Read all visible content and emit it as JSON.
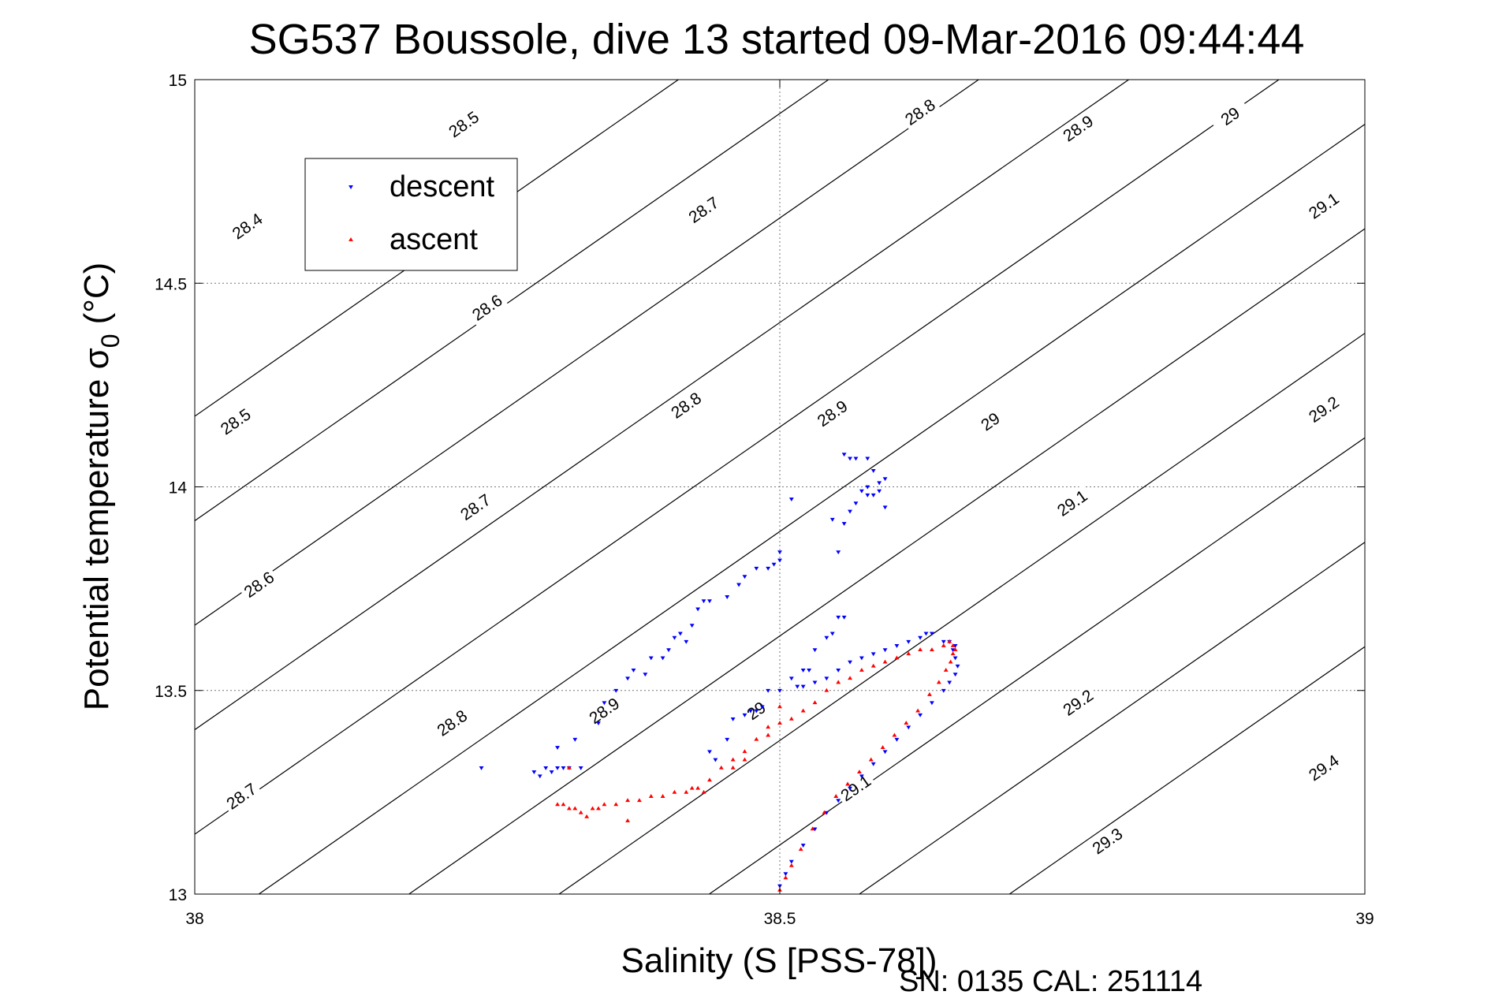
{
  "chart_data": {
    "type": "scatter",
    "title": "SG537 Boussole, dive 13 started 09-Mar-2016 09:44:44",
    "xlabel": "Salinity (S [PSS-78])",
    "ylabel_main": "Potential temperature σ",
    "ylabel_sub": "0",
    "ylabel_unit": "(°C)",
    "xlim": [
      38,
      39
    ],
    "ylim": [
      13,
      15
    ],
    "xticks": [
      38,
      38.5,
      39
    ],
    "xtick_labels": [
      "38",
      "38.5",
      "39"
    ],
    "yticks": [
      13,
      13.5,
      14,
      14.5,
      15
    ],
    "ytick_labels": [
      "13",
      "13.5",
      "14",
      "14.5",
      "15"
    ],
    "grid": true,
    "legend_position": "top-left",
    "footer": "SN: 0135  CAL: 251114",
    "colors": {
      "descent": "#0000ff",
      "ascent": "#ff0000",
      "isopycnal": "#000000"
    },
    "isopycnals": [
      {
        "sigma": 28.4,
        "x0": 37.4133,
        "label": "28.4",
        "label_at": [
          38.045,
          14.64
        ]
      },
      {
        "sigma": 28.5,
        "x0": 37.5416,
        "label": "28.5",
        "label_at": [
          38.23,
          14.89
        ]
      },
      {
        "sigma": 28.5,
        "x0": 37.5416,
        "label": "28.5",
        "label_at": [
          38.035,
          14.16
        ]
      },
      {
        "sigma": 28.6,
        "x0": 37.6699,
        "label": "28.6",
        "label_at": [
          38.25,
          14.44
        ]
      },
      {
        "sigma": 28.6,
        "x0": 37.6699,
        "label": "28.6",
        "label_at": [
          38.055,
          13.76
        ]
      },
      {
        "sigma": 28.7,
        "x0": 37.7982,
        "label": "28.7",
        "label_at": [
          38.435,
          14.68
        ]
      },
      {
        "sigma": 28.7,
        "x0": 37.7982,
        "label": "28.7",
        "label_at": [
          38.24,
          13.95
        ]
      },
      {
        "sigma": 28.7,
        "x0": 37.7982,
        "label": "28.7",
        "label_at": [
          38.04,
          13.24
        ]
      },
      {
        "sigma": 28.8,
        "x0": 37.9265,
        "label": "28.8",
        "label_at": [
          38.62,
          14.92
        ]
      },
      {
        "sigma": 28.8,
        "x0": 37.9265,
        "label": "28.8",
        "label_at": [
          38.42,
          14.2
        ]
      },
      {
        "sigma": 28.8,
        "x0": 37.9265,
        "label": "28.8",
        "label_at": [
          38.22,
          13.42
        ]
      },
      {
        "sigma": 28.9,
        "x0": 38.0548,
        "label": "28.9",
        "label_at": [
          38.755,
          14.88
        ]
      },
      {
        "sigma": 28.9,
        "x0": 38.0548,
        "label": "28.9",
        "label_at": [
          38.545,
          14.18
        ]
      },
      {
        "sigma": 28.9,
        "x0": 38.0548,
        "label": "28.9",
        "label_at": [
          38.35,
          13.45
        ]
      },
      {
        "sigma": 29.0,
        "x0": 38.1831,
        "label": "29",
        "label_at": [
          38.885,
          14.91
        ]
      },
      {
        "sigma": 29.0,
        "x0": 38.1831,
        "label": "29",
        "label_at": [
          38.68,
          14.16
        ]
      },
      {
        "sigma": 29.0,
        "x0": 38.1831,
        "label": "29",
        "label_at": [
          38.48,
          13.45
        ]
      },
      {
        "sigma": 29.1,
        "x0": 38.3114,
        "label": "29.1",
        "label_at": [
          38.965,
          14.69
        ]
      },
      {
        "sigma": 29.1,
        "x0": 38.3114,
        "label": "29.1",
        "label_at": [
          38.75,
          13.96
        ]
      },
      {
        "sigma": 29.1,
        "x0": 38.3114,
        "label": "29.1",
        "label_at": [
          38.565,
          13.26
        ]
      },
      {
        "sigma": 29.2,
        "x0": 38.4397,
        "label": "29.2",
        "label_at": [
          38.965,
          14.19
        ]
      },
      {
        "sigma": 29.2,
        "x0": 38.4397,
        "label": "29.2",
        "label_at": [
          38.755,
          13.47
        ]
      },
      {
        "sigma": 29.3,
        "x0": 38.568,
        "label": "29.3",
        "label_at": [
          38.78,
          13.13
        ]
      },
      {
        "sigma": 29.4,
        "x0": 38.6963,
        "label": "29.4",
        "label_at": [
          38.965,
          13.31
        ]
      }
    ],
    "series": [
      {
        "name": "descent",
        "marker": "triangle-down",
        "points": [
          [
            38.245,
            13.31
          ],
          [
            38.29,
            13.3
          ],
          [
            38.295,
            13.29
          ],
          [
            38.3,
            13.31
          ],
          [
            38.305,
            13.3
          ],
          [
            38.31,
            13.31
          ],
          [
            38.315,
            13.31
          ],
          [
            38.32,
            13.31
          ],
          [
            38.33,
            13.31
          ],
          [
            38.31,
            13.36
          ],
          [
            38.325,
            13.38
          ],
          [
            38.345,
            13.42
          ],
          [
            38.35,
            13.47
          ],
          [
            38.36,
            13.5
          ],
          [
            38.37,
            13.53
          ],
          [
            38.375,
            13.55
          ],
          [
            38.385,
            13.54
          ],
          [
            38.39,
            13.58
          ],
          [
            38.4,
            13.58
          ],
          [
            38.405,
            13.6
          ],
          [
            38.41,
            13.63
          ],
          [
            38.415,
            13.64
          ],
          [
            38.42,
            13.62
          ],
          [
            38.425,
            13.66
          ],
          [
            38.43,
            13.7
          ],
          [
            38.435,
            13.72
          ],
          [
            38.44,
            13.72
          ],
          [
            38.455,
            13.73
          ],
          [
            38.465,
            13.76
          ],
          [
            38.47,
            13.78
          ],
          [
            38.48,
            13.8
          ],
          [
            38.49,
            13.8
          ],
          [
            38.495,
            13.81
          ],
          [
            38.5,
            13.82
          ],
          [
            38.5,
            13.84
          ],
          [
            38.51,
            13.97
          ],
          [
            38.44,
            13.35
          ],
          [
            38.445,
            13.33
          ],
          [
            38.455,
            13.38
          ],
          [
            38.46,
            13.43
          ],
          [
            38.47,
            13.44
          ],
          [
            38.475,
            13.45
          ],
          [
            38.48,
            13.45
          ],
          [
            38.485,
            13.46
          ],
          [
            38.49,
            13.5
          ],
          [
            38.5,
            13.5
          ],
          [
            38.51,
            13.53
          ],
          [
            38.52,
            13.55
          ],
          [
            38.525,
            13.55
          ],
          [
            38.53,
            13.6
          ],
          [
            38.54,
            13.63
          ],
          [
            38.545,
            13.64
          ],
          [
            38.55,
            13.68
          ],
          [
            38.515,
            13.51
          ],
          [
            38.52,
            13.51
          ],
          [
            38.53,
            13.52
          ],
          [
            38.54,
            13.53
          ],
          [
            38.55,
            13.55
          ],
          [
            38.56,
            13.57
          ],
          [
            38.57,
            13.58
          ],
          [
            38.58,
            13.59
          ],
          [
            38.59,
            13.6
          ],
          [
            38.6,
            13.61
          ],
          [
            38.61,
            13.62
          ],
          [
            38.62,
            13.63
          ],
          [
            38.625,
            13.64
          ],
          [
            38.63,
            13.64
          ],
          [
            38.64,
            13.62
          ],
          [
            38.645,
            13.62
          ],
          [
            38.65,
            13.61
          ],
          [
            38.648,
            13.6
          ],
          [
            38.65,
            13.58
          ],
          [
            38.652,
            13.56
          ],
          [
            38.65,
            13.54
          ],
          [
            38.645,
            13.52
          ],
          [
            38.64,
            13.5
          ],
          [
            38.63,
            13.47
          ],
          [
            38.62,
            13.44
          ],
          [
            38.61,
            13.41
          ],
          [
            38.6,
            13.38
          ],
          [
            38.59,
            13.35
          ],
          [
            38.58,
            13.32
          ],
          [
            38.57,
            13.29
          ],
          [
            38.56,
            13.26
          ],
          [
            38.55,
            13.23
          ],
          [
            38.54,
            13.2
          ],
          [
            38.53,
            13.16
          ],
          [
            38.52,
            13.12
          ],
          [
            38.51,
            13.08
          ],
          [
            38.505,
            13.05
          ],
          [
            38.5,
            13.02
          ],
          [
            38.545,
            13.92
          ],
          [
            38.555,
            13.91
          ],
          [
            38.56,
            13.94
          ],
          [
            38.565,
            13.96
          ],
          [
            38.57,
            13.99
          ],
          [
            38.575,
            14.0
          ],
          [
            38.58,
            13.98
          ],
          [
            38.585,
            14.01
          ],
          [
            38.59,
            14.02
          ],
          [
            38.585,
            13.99
          ],
          [
            38.58,
            14.04
          ],
          [
            38.575,
            14.07
          ],
          [
            38.565,
            14.07
          ],
          [
            38.56,
            14.07
          ],
          [
            38.555,
            14.08
          ],
          [
            38.575,
            13.98
          ],
          [
            38.59,
            13.95
          ],
          [
            38.55,
            13.84
          ],
          [
            38.555,
            13.68
          ]
        ]
      },
      {
        "name": "ascent",
        "marker": "triangle-up",
        "points": [
          [
            38.31,
            13.22
          ],
          [
            38.315,
            13.22
          ],
          [
            38.32,
            13.21
          ],
          [
            38.325,
            13.21
          ],
          [
            38.33,
            13.2
          ],
          [
            38.335,
            13.19
          ],
          [
            38.34,
            13.21
          ],
          [
            38.345,
            13.21
          ],
          [
            38.35,
            13.22
          ],
          [
            38.36,
            13.22
          ],
          [
            38.37,
            13.23
          ],
          [
            38.38,
            13.23
          ],
          [
            38.39,
            13.24
          ],
          [
            38.4,
            13.24
          ],
          [
            38.41,
            13.25
          ],
          [
            38.42,
            13.25
          ],
          [
            38.425,
            13.26
          ],
          [
            38.43,
            13.26
          ],
          [
            38.435,
            13.25
          ],
          [
            38.44,
            13.28
          ],
          [
            38.45,
            13.31
          ],
          [
            38.46,
            13.33
          ],
          [
            38.47,
            13.35
          ],
          [
            38.48,
            13.38
          ],
          [
            38.49,
            13.41
          ],
          [
            38.5,
            13.42
          ],
          [
            38.51,
            13.43
          ],
          [
            38.52,
            13.45
          ],
          [
            38.53,
            13.47
          ],
          [
            38.54,
            13.5
          ],
          [
            38.55,
            13.52
          ],
          [
            38.56,
            13.53
          ],
          [
            38.57,
            13.55
          ],
          [
            38.58,
            13.56
          ],
          [
            38.59,
            13.57
          ],
          [
            38.6,
            13.58
          ],
          [
            38.61,
            13.59
          ],
          [
            38.62,
            13.6
          ],
          [
            38.63,
            13.6
          ],
          [
            38.64,
            13.61
          ],
          [
            38.645,
            13.62
          ],
          [
            38.648,
            13.61
          ],
          [
            38.65,
            13.6
          ],
          [
            38.648,
            13.59
          ],
          [
            38.646,
            13.57
          ],
          [
            38.642,
            13.55
          ],
          [
            38.636,
            13.52
          ],
          [
            38.628,
            13.49
          ],
          [
            38.618,
            13.45
          ],
          [
            38.608,
            13.42
          ],
          [
            38.598,
            13.39
          ],
          [
            38.588,
            13.36
          ],
          [
            38.578,
            13.33
          ],
          [
            38.568,
            13.3
          ],
          [
            38.558,
            13.27
          ],
          [
            38.548,
            13.24
          ],
          [
            38.538,
            13.2
          ],
          [
            38.528,
            13.16
          ],
          [
            38.518,
            13.11
          ],
          [
            38.51,
            13.07
          ],
          [
            38.505,
            13.04
          ],
          [
            38.5,
            13.01
          ],
          [
            38.37,
            13.18
          ],
          [
            38.32,
            13.31
          ],
          [
            38.49,
            13.39
          ],
          [
            38.5,
            13.46
          ],
          [
            38.47,
            13.33
          ],
          [
            38.46,
            13.31
          ]
        ]
      }
    ]
  }
}
